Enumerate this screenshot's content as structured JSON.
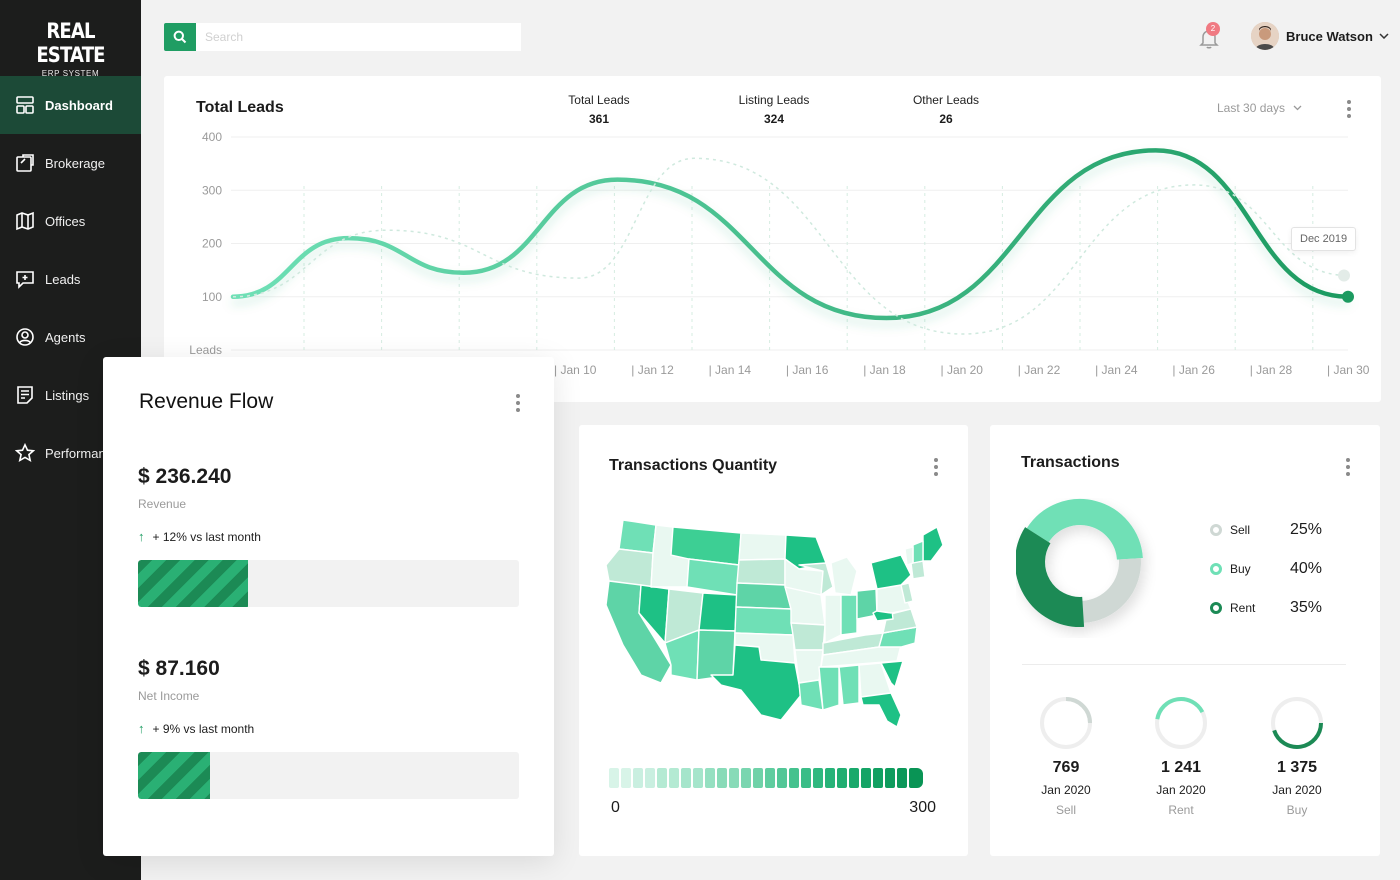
{
  "brand": {
    "title": "REAL ESTATE",
    "subtitle": "ERP SYSTEM"
  },
  "sidebar": {
    "items": [
      {
        "label": "Dashboard",
        "icon": "dashboard-icon",
        "active": true
      },
      {
        "label": "Brokerage",
        "icon": "brokerage-icon"
      },
      {
        "label": "Offices",
        "icon": "map-icon"
      },
      {
        "label": "Leads",
        "icon": "message-plus-icon"
      },
      {
        "label": "Agents",
        "icon": "user-circle-icon"
      },
      {
        "label": "Listings",
        "icon": "document-icon"
      },
      {
        "label": "Performance",
        "icon": "star-icon"
      }
    ]
  },
  "search": {
    "placeholder": "Search",
    "icon": "search-icon"
  },
  "notifications": {
    "count": "2",
    "icon": "bell-icon"
  },
  "user": {
    "name": "Bruce Watson"
  },
  "leads": {
    "title": "Total Leads",
    "stats": [
      {
        "label": "Total Leads",
        "value": "361"
      },
      {
        "label": "Listing Leads",
        "value": "324"
      },
      {
        "label": "Other Leads",
        "value": "26"
      }
    ],
    "range": "Last 30 days",
    "tooltip": "Dec 2019"
  },
  "chart_data": {
    "type": "line",
    "ylabel": "Leads",
    "ylim": [
      0,
      400
    ],
    "yticks": [
      "400",
      "300",
      "200",
      "100"
    ],
    "x_tick_labels": [
      "| Jan 10",
      "| Jan 12",
      "| Jan 14",
      "| Jan 16",
      "| Jan 18",
      "| Jan 20",
      "| Jan 22",
      "| Jan 24",
      "| Jan 26",
      "| Jan 28",
      "| Jan 30"
    ],
    "series": [
      {
        "style": "solid",
        "color": "#2bb57c",
        "x": [
          1,
          4,
          7,
          11,
          18,
          25,
          30
        ],
        "values": [
          100,
          210,
          145,
          320,
          60,
          375,
          100
        ]
      },
      {
        "style": "dashed",
        "color": "#cfe9de",
        "x": [
          1,
          5,
          10,
          13,
          20,
          26,
          30
        ],
        "values": [
          100,
          225,
          135,
          360,
          30,
          310,
          140
        ]
      }
    ]
  },
  "revenue": {
    "title": "Revenue Flow",
    "blocks": [
      {
        "amount": "$ 236.240",
        "label": "Revenue",
        "change": "+ 12% vs last month",
        "progress": 0.29
      },
      {
        "amount": "$ 87.160",
        "label": "Net Income",
        "change": "+ 9% vs last month",
        "progress": 0.19
      }
    ]
  },
  "transactions_quantity": {
    "title": "Transactions Quantity",
    "scale_min": "0",
    "scale_max": "300"
  },
  "transactions": {
    "title": "Transactions",
    "legend": [
      {
        "label": "Sell",
        "value": "25%",
        "color": "#cfd8d4"
      },
      {
        "label": "Buy",
        "value": "40%",
        "color": "#6fe0b6"
      },
      {
        "label": "Rent",
        "value": "35%",
        "color": "#1c8a55"
      }
    ],
    "donut": [
      {
        "label": "Sell",
        "fraction": 0.25,
        "color": "#cfd8d4"
      },
      {
        "label": "Buy",
        "fraction": 0.4,
        "color": "#6fe0b6"
      },
      {
        "label": "Rent",
        "fraction": 0.35,
        "color": "#1c8a55"
      }
    ],
    "minis": [
      {
        "value": "769",
        "date": "Jan 2020",
        "type": "Sell",
        "fraction": 0.25,
        "color": "#cfd8d4"
      },
      {
        "value": "1 241",
        "date": "Jan 2020",
        "type": "Rent",
        "fraction": 0.4,
        "color": "#6fe0b6"
      },
      {
        "value": "1 375",
        "date": "Jan 2020",
        "type": "Buy",
        "fraction": 0.45,
        "color": "#1c8a55"
      }
    ]
  }
}
